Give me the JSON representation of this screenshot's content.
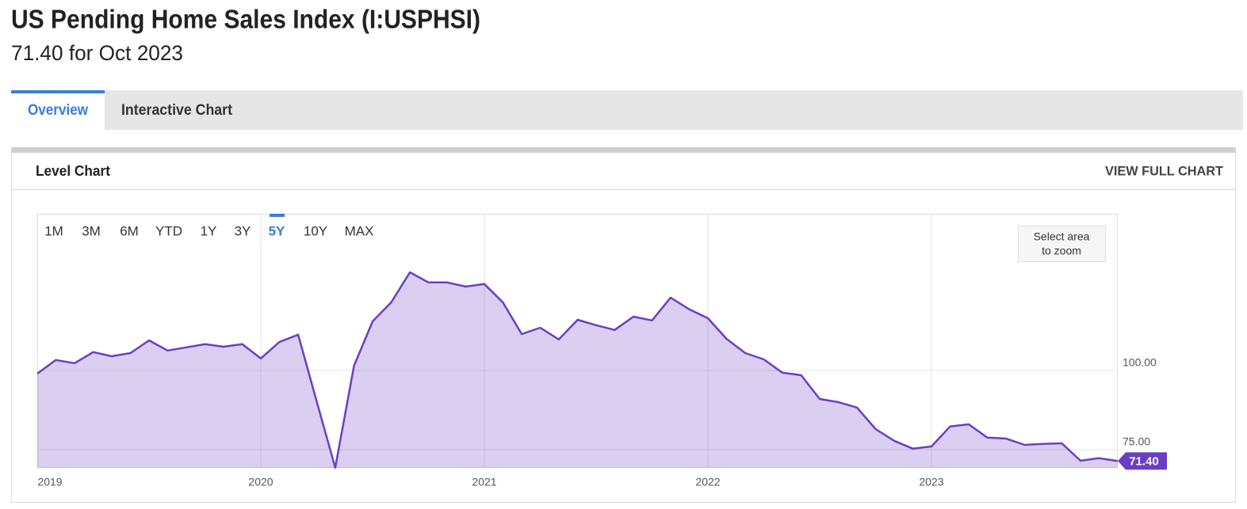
{
  "header": {
    "title": "US Pending Home Sales Index (I:USPHSI)",
    "subtitle": "71.40 for Oct 2023"
  },
  "tabs": [
    "Overview",
    "Interactive Chart"
  ],
  "card": {
    "title": "Level Chart",
    "action": "VIEW FULL CHART"
  },
  "range_buttons": [
    "1M",
    "3M",
    "6M",
    "YTD",
    "1Y",
    "3Y",
    "5Y",
    "10Y",
    "MAX"
  ],
  "zoom_hint": [
    "Select area",
    "to zoom"
  ],
  "chart_data": {
    "type": "area",
    "x": [
      2019,
      2019.083,
      2019.167,
      2019.25,
      2019.333,
      2019.417,
      2019.5,
      2019.583,
      2019.667,
      2019.75,
      2019.833,
      2019.917,
      2020,
      2020.083,
      2020.167,
      2020.25,
      2020.333,
      2020.417,
      2020.5,
      2020.583,
      2020.667,
      2020.75,
      2020.833,
      2020.917,
      2021,
      2021.083,
      2021.167,
      2021.25,
      2021.333,
      2021.417,
      2021.5,
      2021.583,
      2021.667,
      2021.75,
      2021.833,
      2021.917,
      2022,
      2022.083,
      2022.167,
      2022.25,
      2022.333,
      2022.417,
      2022.5,
      2022.583,
      2022.667,
      2022.75,
      2022.833,
      2022.917,
      2023,
      2023.083,
      2023.167,
      2023.25,
      2023.333,
      2023.417,
      2023.5,
      2023.583,
      2023.667,
      2023.75,
      2023.833
    ],
    "values": [
      99.0,
      103.3,
      102.3,
      105.8,
      104.5,
      105.5,
      109.5,
      106.3,
      107.3,
      108.3,
      107.5,
      108.3,
      103.8,
      109.0,
      111.3,
      90.2,
      69.3,
      101.5,
      115.5,
      121.5,
      131.0,
      127.8,
      127.8,
      126.5,
      127.3,
      121.5,
      111.5,
      113.5,
      109.8,
      116.0,
      114.3,
      112.8,
      117.0,
      115.8,
      123.0,
      119.3,
      116.5,
      110.0,
      105.5,
      103.5,
      99.3,
      98.5,
      91.0,
      90.0,
      88.3,
      81.5,
      77.8,
      75.3,
      76.0,
      82.3,
      83.0,
      78.8,
      78.5,
      76.5,
      76.8,
      77.0,
      71.5,
      72.3,
      71.4
    ],
    "value_labels": [
      null,
      null,
      null,
      null,
      null,
      null,
      null,
      null,
      null,
      null,
      null,
      null,
      null,
      null,
      null,
      null,
      null,
      null,
      null,
      null,
      null,
      null,
      null,
      null,
      null,
      null,
      null,
      null,
      null,
      null,
      null,
      null,
      null,
      null,
      null,
      null,
      null,
      null,
      null,
      null,
      null,
      null,
      null,
      null,
      null,
      null,
      null,
      null,
      null,
      null,
      null,
      null,
      null,
      null,
      null,
      null,
      null,
      null,
      "71.40"
    ],
    "color": "#6a3fc4",
    "xlim": [
      2019,
      2023.83
    ],
    "xticks": [
      2019,
      2020,
      2021,
      2022,
      2023
    ],
    "ylim": [
      69.25,
      149.5
    ],
    "yticks": [
      {
        "value": 75,
        "label": "75.00"
      },
      {
        "value": 100,
        "label": "100.00"
      }
    ],
    "grid": true
  }
}
